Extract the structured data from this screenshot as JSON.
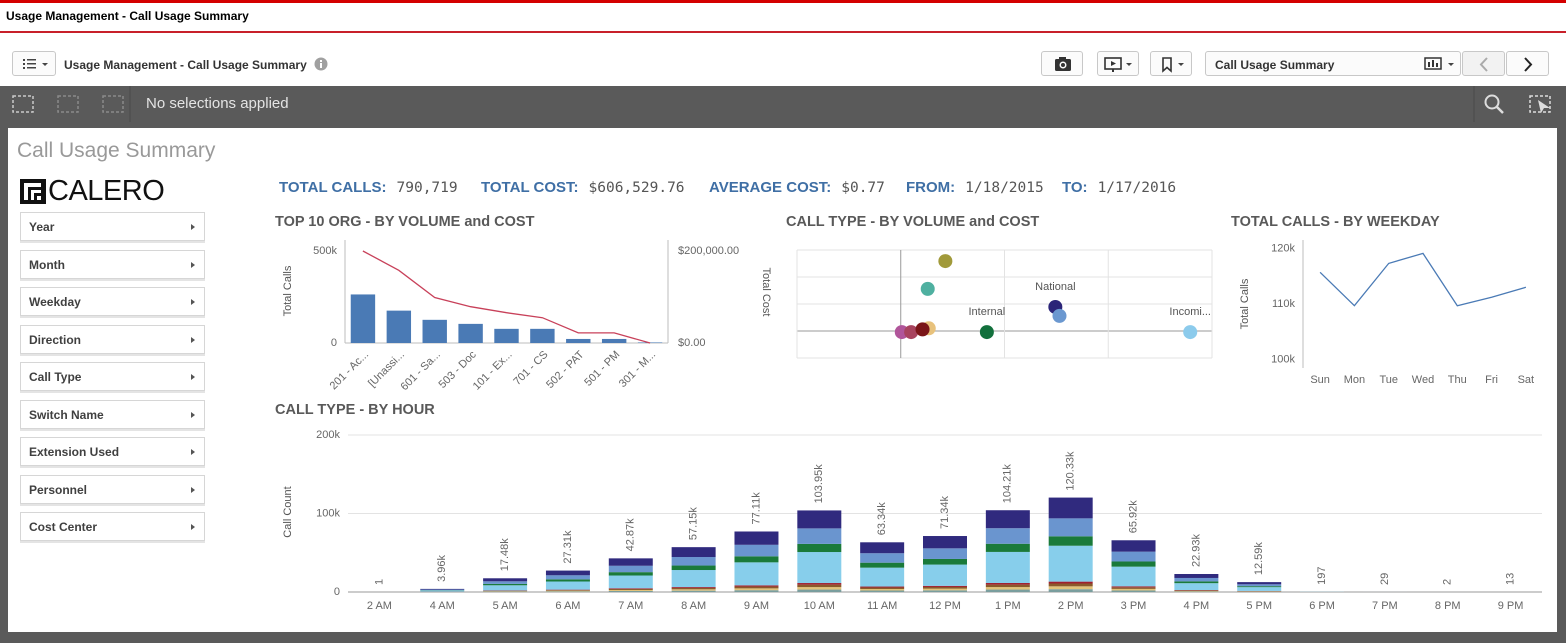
{
  "window": {
    "title": "Usage Management - Call Usage Summary"
  },
  "toolbar": {
    "app_title": "Usage Management - Call Usage Summary",
    "sheet_selector": "Call Usage Summary"
  },
  "selections": {
    "status": "No selections applied"
  },
  "sheet": {
    "title": "Call Usage Summary",
    "logo": "CALERO"
  },
  "filters": [
    "Year",
    "Month",
    "Weekday",
    "Direction",
    "Call Type",
    "Switch Name",
    "Extension Used",
    "Personnel",
    "Cost Center"
  ],
  "kpis": [
    {
      "label": "TOTAL CALLS:",
      "value": "790,719"
    },
    {
      "label": "TOTAL COST:",
      "value": "$606,529.76"
    },
    {
      "label": "AVERAGE COST:",
      "value": "$0.77"
    },
    {
      "label": "FROM:",
      "value": "1/18/2015"
    },
    {
      "label": "TO:",
      "value": "1/17/2016"
    }
  ],
  "chart_data": [
    {
      "type": "combo",
      "title": "TOP 10 ORG - BY VOLUME and COST",
      "y_label": "Total Calls",
      "categories": [
        "201 - Ac...",
        "[Unassi...",
        "601 - Sa...",
        "503 - Doc",
        "101 - Ex...",
        "701 - CS",
        "502 - PAT",
        "501 - PM",
        "301 - M..."
      ],
      "series": [
        {
          "type": "bar",
          "color": "#4a7ab5",
          "values": [
            264000,
            176000,
            126000,
            104000,
            77000,
            77000,
            22000,
            22000,
            3000
          ]
        },
        {
          "type": "line",
          "axis": "y2",
          "color": "#c8415a",
          "values": [
            200000,
            158000,
            99000,
            79000,
            66000,
            55000,
            22000,
            22000,
            0
          ]
        }
      ],
      "ylim": [
        0,
        560000
      ],
      "yticks": [
        0,
        {
          "value": 500000,
          "label": "500k"
        }
      ],
      "y2lim": [
        0,
        224000
      ],
      "y2ticks": [
        {
          "value": 0,
          "label": "$0.00"
        },
        {
          "value": 200000,
          "label": "$200,000.00"
        }
      ],
      "grid": false
    },
    {
      "type": "scatter",
      "title": "CALL TYPE - BY VOLUME and COST",
      "y_label": "Total Cost",
      "x": [
        0.43,
        0.26,
        0.27,
        0.01,
        0.1,
        0.21,
        0.83,
        1.49,
        1.53,
        2.79
      ],
      "y": [
        2.59,
        1.56,
        0.1,
        -0.04,
        -0.04,
        0.06,
        -0.04,
        0.89,
        0.56,
        -0.04
      ],
      "colors": [
        "#a19a3a",
        "#4fb0a0",
        "#e8c27c",
        "#b0559a",
        "#a8435e",
        "#7b1518",
        "#12703c",
        "#2b2478",
        "#6b98d0",
        "#8ccbec"
      ],
      "labels": [
        null,
        null,
        null,
        null,
        null,
        null,
        "Internal",
        "National",
        null,
        "Incomi..."
      ],
      "xlim": [
        -1,
        3
      ],
      "ylim": [
        -1,
        3
      ],
      "xticks": [
        -1,
        0,
        1,
        2,
        3
      ],
      "yticks": [
        -1,
        0,
        1,
        2,
        3
      ],
      "grid": true,
      "tick_labels": false
    },
    {
      "type": "line",
      "title": "TOTAL CALLS - BY WEEKDAY",
      "y_label": "Total Calls",
      "categories": [
        "Sun",
        "Mon",
        "Tue",
        "Wed",
        "Thu",
        "Fri",
        "Sat"
      ],
      "values": [
        115700,
        109700,
        117300,
        119100,
        109700,
        111200,
        113000
      ],
      "color": "#4a7ab5",
      "ylim": [
        98500,
        121500
      ],
      "yticks": [
        {
          "value": 100000,
          "label": "100k"
        },
        {
          "value": 110000,
          "label": "110k"
        },
        {
          "value": 120000,
          "label": "120k"
        }
      ],
      "grid": false
    },
    {
      "type": "stacked_bar",
      "title": "CALL TYPE - BY HOUR",
      "y_label": "Call Count",
      "categories": [
        "2 AM",
        "4 AM",
        "5 AM",
        "6 AM",
        "7 AM",
        "8 AM",
        "9 AM",
        "10 AM",
        "11 AM",
        "12 PM",
        "1 PM",
        "2 PM",
        "3 PM",
        "4 PM",
        "5 PM",
        "6 PM",
        "7 PM",
        "8 PM",
        "9 PM"
      ],
      "series": [
        {
          "color": "#7a9e9e",
          "values": [
            0,
            119,
            524,
            819,
            1286,
            1715,
            2313,
            3119,
            1900,
            2140,
            3126,
            3610,
            1978,
            688,
            378,
            0,
            0,
            0,
            0
          ]
        },
        {
          "color": "#e2c37a",
          "values": [
            0,
            119,
            524,
            819,
            1286,
            1715,
            2313,
            3119,
            1900,
            2140,
            3126,
            3610,
            1978,
            688,
            378,
            0,
            0,
            0,
            0
          ]
        },
        {
          "color": "#8b5a2b",
          "values": [
            0,
            119,
            524,
            819,
            1286,
            1715,
            2313,
            3119,
            1900,
            2140,
            3126,
            3610,
            1978,
            688,
            378,
            0,
            0,
            0,
            0
          ]
        },
        {
          "color": "#a02030",
          "values": [
            0,
            79,
            350,
            546,
            857,
            1143,
            1542,
            2079,
            1267,
            1427,
            2084,
            2407,
            1318,
            459,
            252,
            0,
            0,
            0,
            0
          ]
        },
        {
          "color": "#87ceeb",
          "values": [
            1,
            1505,
            6643,
            10379,
            16292,
            21715,
            29303,
            39499,
            24069,
            27109,
            39601,
            45724,
            25049,
            8712,
            4783,
            197,
            29,
            2,
            13
          ]
        },
        {
          "color": "#1a7a3a",
          "values": [
            0,
            396,
            1748,
            2731,
            4287,
            5715,
            7711,
            10395,
            6334,
            7134,
            10421,
            12033,
            6592,
            2293,
            1259,
            0,
            0,
            0,
            0
          ]
        },
        {
          "color": "#6a95cf",
          "values": [
            0,
            752,
            3321,
            5189,
            8145,
            10859,
            14651,
            19751,
            12035,
            13555,
            19800,
            22863,
            12525,
            4357,
            2392,
            0,
            0,
            0,
            0
          ]
        },
        {
          "color": "#302a7e",
          "values": [
            0,
            871,
            3846,
            6008,
            9431,
            12573,
            16964,
            22869,
            13935,
            15695,
            22926,
            26473,
            14502,
            5045,
            2770,
            0,
            0,
            0,
            0
          ]
        }
      ],
      "total_labels": [
        "1",
        "3.96k",
        "17.48k",
        "27.31k",
        "42.87k",
        "57.15k",
        "77.11k",
        "103.95k",
        "63.34k",
        "71.34k",
        "104.21k",
        "120.33k",
        "65.92k",
        "22.93k",
        "12.59k",
        "197",
        "29",
        "2",
        "13"
      ],
      "ylim": [
        0,
        209000
      ],
      "yticks": [
        0,
        {
          "value": 100000,
          "label": "100k"
        },
        {
          "value": 200000,
          "label": "200k"
        }
      ],
      "grid": true
    }
  ]
}
